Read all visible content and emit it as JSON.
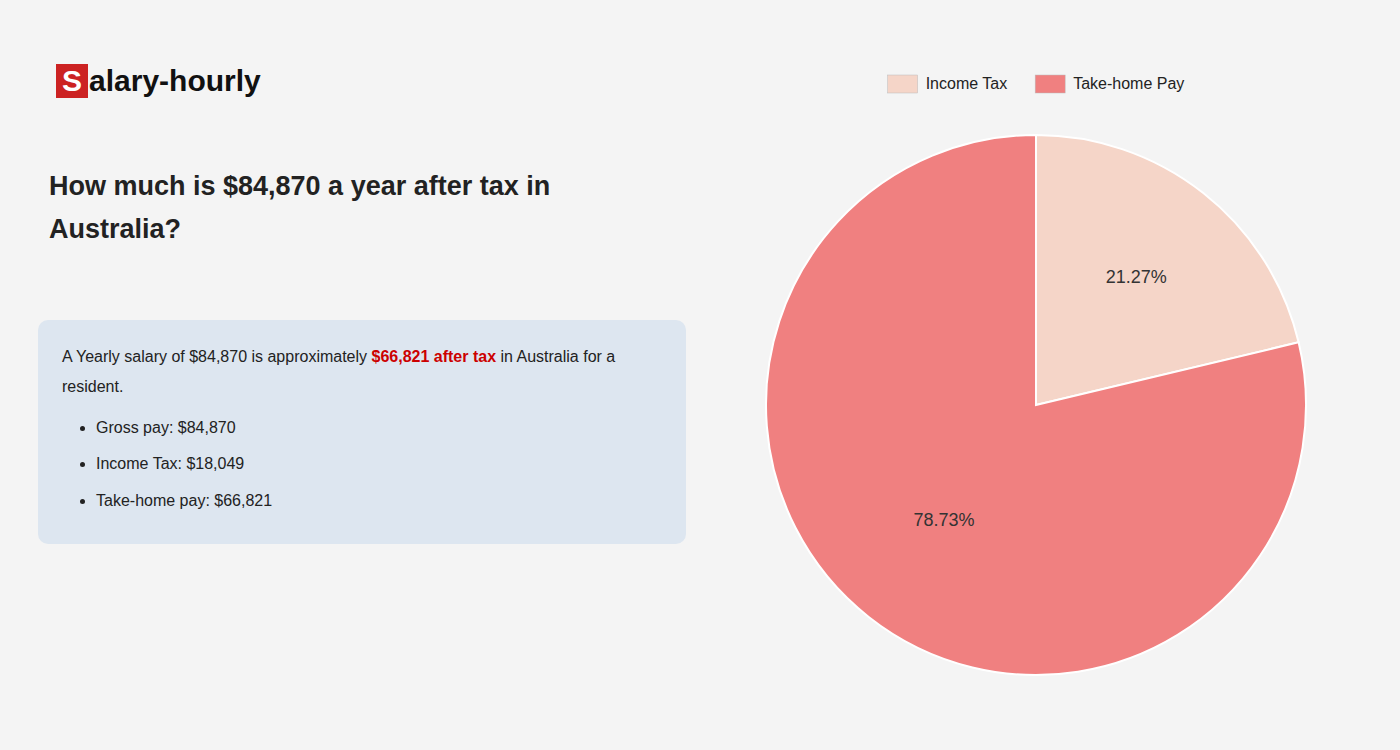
{
  "chart_data": {
    "type": "pie",
    "title": "How much is $84,870 a year after tax in Australia?",
    "annotations": {
      "logo": "Salary-hourly",
      "paragraph": [
        {
          "text": "A Yearly salary of $84,870 is approximately "
        },
        {
          "text": "$66,821 after tax",
          "color": "#cc0000"
        },
        {
          "text": " in Australia for a resident."
        }
      ],
      "bullets": [
        "Gross pay: $84,870",
        "Income Tax: $18,049",
        "Take-home pay: $66,821"
      ]
    },
    "categories": [
      "Income Tax",
      "Take-home Pay"
    ],
    "values": [
      21.27,
      78.73
    ],
    "value_labels": [
      "21.27%",
      "78.73%"
    ],
    "colors": [
      "#f5d5c8",
      "#f08080"
    ],
    "data_labels": true,
    "legend": "top"
  }
}
